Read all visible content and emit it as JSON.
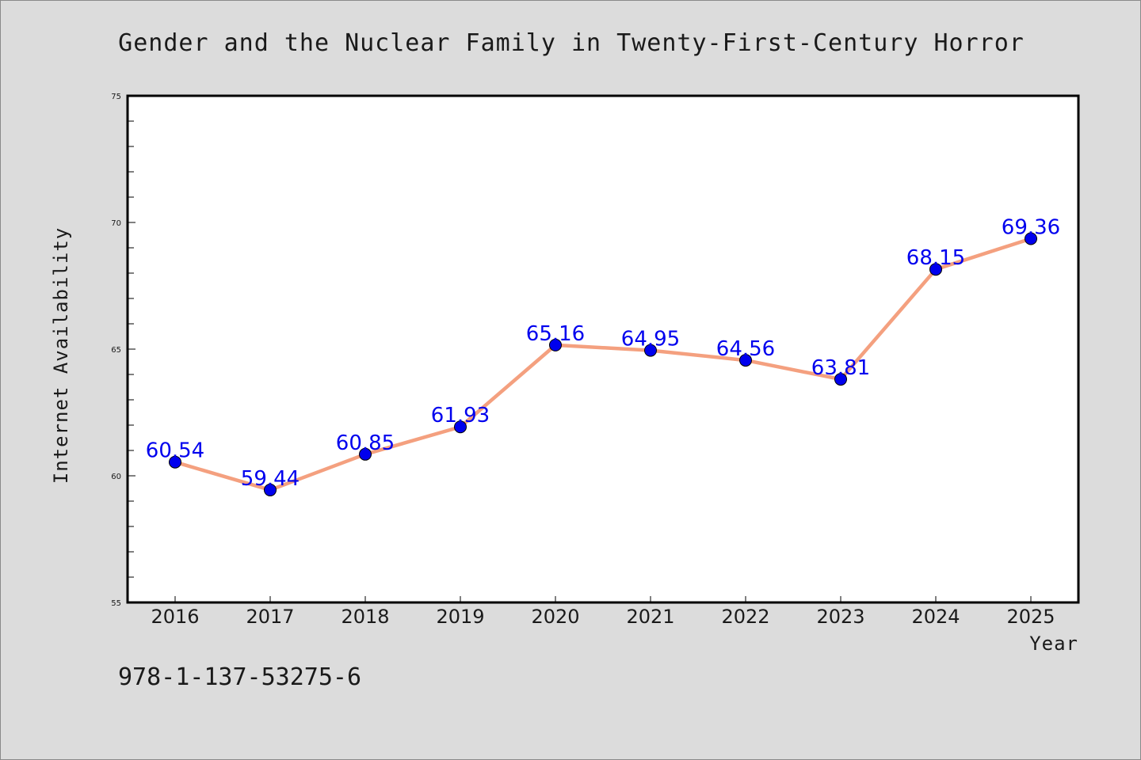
{
  "colors": {
    "background": "#dcdcdc",
    "plot_background": "#ffffff",
    "line": "#f4a07f",
    "marker": "#0000ee",
    "data_label": "#0000ee",
    "axes": "#000000"
  },
  "footer": {
    "isbn": "978-1-137-53275-6"
  },
  "chart_data": {
    "type": "line",
    "title": "Gender and the Nuclear Family in Twenty-First-Century Horror",
    "xlabel": "Year",
    "ylabel": "Internet Availability",
    "categories": [
      "2016",
      "2017",
      "2018",
      "2019",
      "2020",
      "2021",
      "2022",
      "2023",
      "2024",
      "2025"
    ],
    "series": [
      {
        "values": [
          60.54,
          59.44,
          60.85,
          61.93,
          65.16,
          64.95,
          64.56,
          63.81,
          68.15,
          69.36
        ],
        "labels": [
          "60.54",
          "59.44",
          "60.85",
          "61.93",
          "65.16",
          "64.95",
          "64.56",
          "63.81",
          "68.15",
          "69.36"
        ]
      }
    ],
    "ylim": [
      55,
      75
    ],
    "yticks": [
      55,
      60,
      65,
      70,
      75
    ],
    "ytick_labels": [
      "55",
      "60",
      "65",
      "70",
      "75"
    ],
    "y_minor_step": 1,
    "grid": false,
    "legend": "none",
    "markers": "circle"
  }
}
